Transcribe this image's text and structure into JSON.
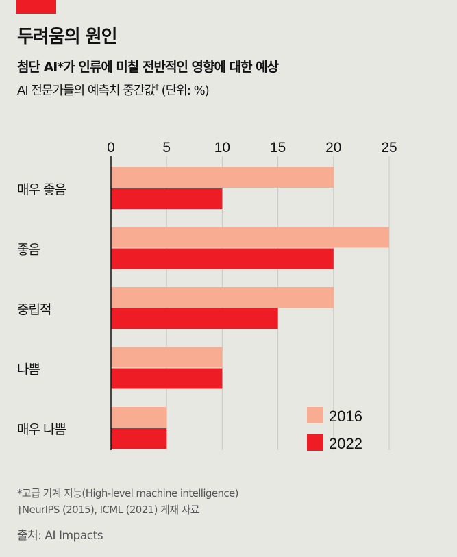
{
  "title": "두려움의 원인",
  "subtitle": "첨단 AI*가 인류에 미칠 전반적인 영향에 대한 예상",
  "description": "AI 전문가들의 예측치 중간값",
  "description_mark": "†",
  "description_unit": " (단위: %)",
  "notes": [
    "*고급 기계 지능(High-level machine intelligence)",
    "†NeurIPS (2015), ICML (2021) 게재 자료"
  ],
  "source": "출처: AI Impacts",
  "colors": {
    "2016": "#f8ad93",
    "2022": "#ee1c25",
    "accent": "#ee1c25"
  },
  "chart_data": {
    "type": "bar",
    "orientation": "horizontal",
    "categories": [
      "매우 좋음",
      "좋음",
      "중립적",
      "나쁨",
      "매우 나쁨"
    ],
    "series": [
      {
        "name": "2016",
        "values": [
          20,
          25,
          20,
          10,
          5
        ]
      },
      {
        "name": "2022",
        "values": [
          10,
          20,
          15,
          10,
          5
        ]
      }
    ],
    "xlim": [
      0,
      25
    ],
    "xticks": [
      0,
      5,
      10,
      15,
      20,
      25
    ],
    "grid": true,
    "legend": "bottom-right"
  }
}
